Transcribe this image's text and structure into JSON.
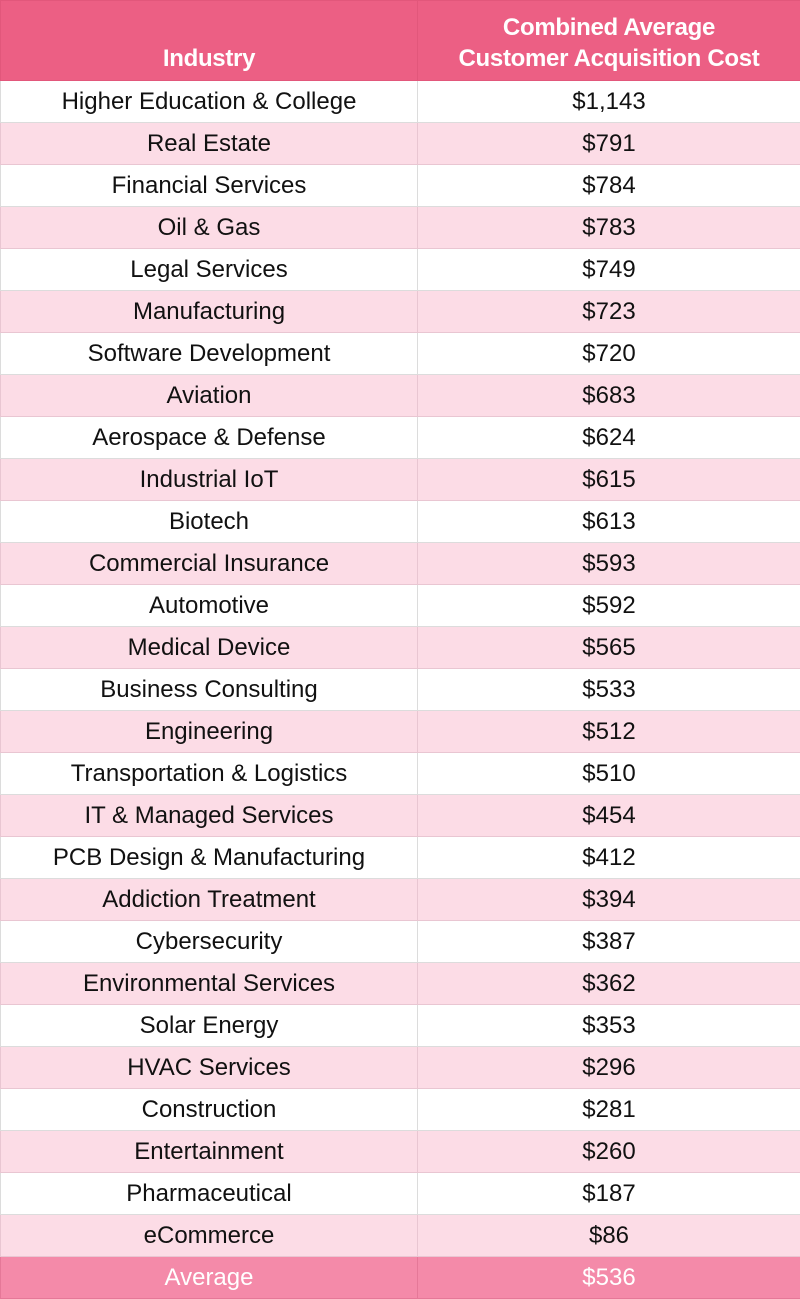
{
  "table": {
    "headers": {
      "industry": "Industry",
      "cost_line1": "Combined Average",
      "cost_line2": "Customer Acquisition Cost"
    },
    "rows": [
      {
        "industry": "Higher Education & College",
        "cost": "$1,143"
      },
      {
        "industry": "Real Estate",
        "cost": "$791"
      },
      {
        "industry": "Financial Services",
        "cost": "$784"
      },
      {
        "industry": "Oil & Gas",
        "cost": "$783"
      },
      {
        "industry": "Legal Services",
        "cost": "$749"
      },
      {
        "industry": "Manufacturing",
        "cost": "$723"
      },
      {
        "industry": "Software Development",
        "cost": "$720"
      },
      {
        "industry": "Aviation",
        "cost": "$683"
      },
      {
        "industry": "Aerospace & Defense",
        "cost": "$624"
      },
      {
        "industry": "Industrial IoT",
        "cost": "$615"
      },
      {
        "industry": "Biotech",
        "cost": "$613"
      },
      {
        "industry": "Commercial Insurance",
        "cost": "$593"
      },
      {
        "industry": "Automotive",
        "cost": "$592"
      },
      {
        "industry": "Medical Device",
        "cost": "$565"
      },
      {
        "industry": "Business Consulting",
        "cost": "$533"
      },
      {
        "industry": "Engineering",
        "cost": "$512"
      },
      {
        "industry": "Transportation & Logistics",
        "cost": "$510"
      },
      {
        "industry": "IT & Managed Services",
        "cost": "$454"
      },
      {
        "industry": "PCB Design & Manufacturing",
        "cost": "$412"
      },
      {
        "industry": "Addiction Treatment",
        "cost": "$394"
      },
      {
        "industry": "Cybersecurity",
        "cost": "$387"
      },
      {
        "industry": "Environmental Services",
        "cost": "$362"
      },
      {
        "industry": "Solar Energy",
        "cost": "$353"
      },
      {
        "industry": "HVAC Services",
        "cost": "$296"
      },
      {
        "industry": "Construction",
        "cost": "$281"
      },
      {
        "industry": "Entertainment",
        "cost": "$260"
      },
      {
        "industry": "Pharmaceutical",
        "cost": "$187"
      },
      {
        "industry": "eCommerce",
        "cost": "$86"
      }
    ],
    "footer": {
      "label": "Average",
      "cost": "$536"
    }
  },
  "colors": {
    "header_bg": "#ec5f84",
    "stripe_bg": "#fcdce6",
    "footer_bg": "#f48aa9",
    "header_text": "#ffffff",
    "body_text": "#111111"
  }
}
